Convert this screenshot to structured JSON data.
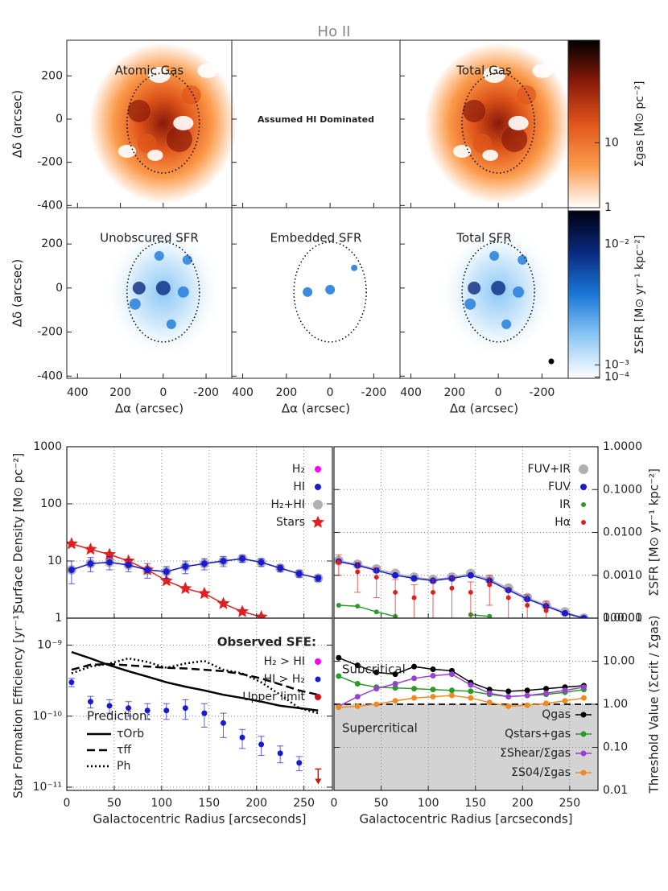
{
  "maps": {
    "title": "Ho II",
    "xlabel": "Δα (arcsec)",
    "ylabel": "Δδ (arcsec)",
    "xlim": [
      450,
      -320
    ],
    "ylim": [
      -410,
      365
    ],
    "xticks": [
      400,
      200,
      0,
      -200
    ],
    "yticks": [
      200,
      0,
      -200,
      -400
    ],
    "panels": [
      [
        "Atomic Gas",
        "Assumed HI Dominated",
        "Total Gas"
      ],
      [
        "Unobscured SFR",
        "Embedded SFR",
        "Total SFR"
      ]
    ],
    "colorbars": [
      {
        "label": "Σgas [M⊙ pc⁻²]",
        "log": true,
        "lim": [
          1,
          380
        ],
        "ticks": [
          10,
          1
        ],
        "colors": [
          "#ffffff",
          "#fb9a4a",
          "#e0551a",
          "#8a1a0a",
          "#000000"
        ]
      },
      {
        "label": "ΣSFR [M⊙ yr⁻¹ kpc⁻²]",
        "log": false,
        "lim": [
          0,
          0.0125
        ],
        "ticks": [
          {
            "value": 0.01,
            "label": "10⁻²"
          },
          {
            "value": 0.001,
            "label": "10⁻³"
          },
          {
            "value": 0.0001,
            "label": "10⁻⁴"
          }
        ],
        "colors": [
          "#ffffff",
          "#8ec8f5",
          "#1a78d8",
          "#0a2a80",
          "#000010"
        ]
      }
    ]
  },
  "chart_data": [
    {
      "type": "line",
      "x": [
        5,
        25,
        45,
        65,
        85,
        105,
        125,
        145,
        165,
        185,
        205,
        225,
        245,
        265
      ],
      "xlim": [
        0,
        280
      ],
      "xticks": [
        0,
        50,
        100,
        150,
        200,
        250
      ],
      "show_xtick_labels": false,
      "ylim": [
        1,
        1000
      ],
      "yticks": [
        1,
        10,
        100,
        1000
      ],
      "log_y": true,
      "y_axis_side": "left",
      "grid": true,
      "ylabel": "Surface Density [M⊙ pc⁻²]",
      "legend": "upper right",
      "series": [
        {
          "name": "H₂",
          "color": "#ff00ff",
          "marker": "circle",
          "marker_size": 4,
          "line": true,
          "values": [
            null,
            null,
            null,
            null,
            null,
            null,
            null,
            null,
            null,
            null,
            null,
            null,
            null,
            null
          ]
        },
        {
          "name": "HI",
          "color": "#1a1ad0",
          "marker": "circle",
          "marker_size": 4,
          "line": true,
          "values": [
            7,
            9,
            9.5,
            8.5,
            7,
            6.5,
            8,
            9,
            10,
            11,
            9.5,
            7.5,
            6,
            5
          ],
          "errors": [
            3,
            2.5,
            2.5,
            2,
            2,
            1.5,
            2,
            2,
            2,
            1.5,
            1.5,
            1,
            0.8,
            0.6
          ]
        },
        {
          "name": "H₂+HI",
          "color": "#b0b0b0",
          "marker": "circle",
          "marker_size": 6,
          "line": true,
          "values": [
            7,
            9,
            9.5,
            8.5,
            7,
            6.5,
            8,
            9,
            10,
            11,
            9.5,
            7.5,
            6,
            5
          ]
        },
        {
          "name": "Stars",
          "color": "#e02020",
          "marker": "star",
          "marker_size": 6,
          "line": true,
          "values": [
            20,
            16,
            13,
            10,
            7,
            4.5,
            3.3,
            2.7,
            1.8,
            1.3,
            1.05,
            null,
            null,
            null
          ]
        }
      ]
    },
    {
      "type": "line",
      "x": [
        5,
        25,
        45,
        65,
        85,
        105,
        125,
        145,
        165,
        185,
        205,
        225,
        245,
        265
      ],
      "xlim": [
        0,
        280
      ],
      "xticks": [
        0,
        50,
        100,
        150,
        200,
        250
      ],
      "show_xtick_labels": false,
      "ylim": [
        0.0001,
        1
      ],
      "yticks": [
        0.0001,
        {
          "value": 0.001,
          "label": "0.0010"
        },
        {
          "value": 0.01,
          "label": "0.0100"
        },
        {
          "value": 0.1,
          "label": "0.1000"
        },
        {
          "value": 1,
          "label": "1.0000"
        }
      ],
      "log_y": true,
      "y_axis_side": "right",
      "grid": true,
      "ylabel": "ΣSFR [M⊙ yr⁻¹ kpc⁻²]",
      "legend": "upper right",
      "series": [
        {
          "name": "FUV+IR",
          "color": "#b0b0b0",
          "marker": "circle",
          "marker_size": 6,
          "line": true,
          "values": [
            0.0022,
            0.0018,
            0.0014,
            0.0011,
            0.0009,
            0.0008,
            0.0009,
            0.0011,
            0.0008,
            0.0005,
            0.0003,
            0.0002,
            0.00014,
            0.0001
          ]
        },
        {
          "name": "FUV",
          "color": "#1a1ad0",
          "marker": "circle",
          "marker_size": 4,
          "line": true,
          "values": [
            0.0021,
            0.0017,
            0.0013,
            0.001,
            0.00085,
            0.00075,
            0.00085,
            0.001,
            0.00075,
            0.00045,
            0.00028,
            0.00019,
            0.00013,
            0.0001
          ]
        },
        {
          "name": "IR",
          "color": "#2a9a2a",
          "marker": "circle",
          "marker_size": 3,
          "line": true,
          "values": [
            0.0002,
            0.00019,
            0.00014,
            0.00011,
            null,
            null,
            null,
            0.00012,
            0.00011,
            null,
            null,
            null,
            null,
            null
          ]
        },
        {
          "name": "Hα",
          "color": "#e02020",
          "marker": "circle",
          "marker_size": 3,
          "line": false,
          "values": [
            0.002,
            0.0012,
            0.0009,
            0.0004,
            0.0003,
            0.0004,
            0.0005,
            0.0004,
            0.0006,
            0.0003,
            0.0002,
            0.00015,
            null,
            null
          ],
          "errors": [
            0.001,
            0.0008,
            0.0006,
            0.0004,
            0.0003,
            0.0004,
            0.0004,
            0.0003,
            0.0004,
            0.0002,
            0.00015,
            0.0001,
            null,
            null
          ]
        }
      ]
    },
    {
      "type": "line",
      "x": [
        5,
        25,
        45,
        65,
        85,
        105,
        125,
        145,
        165,
        185,
        205,
        225,
        245,
        265
      ],
      "xlim": [
        0,
        280
      ],
      "xticks": [
        0,
        50,
        100,
        150,
        200,
        250
      ],
      "xlabel": "Galactocentric Radius [arcseconds]",
      "ylim": [
        9e-12,
        2.4e-09
      ],
      "yticks": [
        {
          "value": 1e-11,
          "label": "10⁻¹¹"
        },
        {
          "value": 1e-10,
          "label": "10⁻¹⁰"
        },
        {
          "value": 1e-09,
          "label": "10⁻⁹"
        }
      ],
      "log_y": true,
      "y_axis_side": "left",
      "grid": true,
      "ylabel": "Star Formation Efficiency [yr⁻¹]",
      "legend": "upper right",
      "legend_title": "Observed SFE:",
      "series": [
        {
          "name": "H₂ > HI",
          "color": "#ff00ff",
          "marker": "circle",
          "marker_size": 4,
          "line": false,
          "values": [
            null,
            null,
            null,
            null,
            null,
            null,
            null,
            null,
            null,
            null,
            null,
            null,
            null,
            null
          ]
        },
        {
          "name": "HI > H₂",
          "color": "#1a1ad0",
          "marker": "circle",
          "marker_size": 3.5,
          "line": false,
          "values": [
            3e-10,
            1.6e-10,
            1.4e-10,
            1.3e-10,
            1.2e-10,
            1.2e-10,
            1.3e-10,
            1.1e-10,
            8e-11,
            5e-11,
            4e-11,
            3e-11,
            2.2e-11,
            null
          ],
          "errors": [
            4e-11,
            3e-11,
            3e-11,
            3e-11,
            3e-11,
            3e-11,
            4e-11,
            4e-11,
            3e-11,
            1.5e-11,
            1.2e-11,
            8e-12,
            5e-12,
            null
          ]
        },
        {
          "name": "Upper limit",
          "color": "#d01010",
          "marker": "arrow",
          "marker_size": 4,
          "line": false,
          "values": [
            null,
            null,
            null,
            null,
            null,
            null,
            null,
            null,
            null,
            null,
            null,
            null,
            null,
            1.8e-11
          ]
        }
      ],
      "predictions": {
        "title": "Prediction:",
        "color": "#000000",
        "series": [
          {
            "name": "τOrb",
            "dash": "solid",
            "values": [
              8e-10,
              6.5e-10,
              5.2e-10,
              4.3e-10,
              3.6e-10,
              3e-10,
              2.6e-10,
              2.3e-10,
              2e-10,
              1.8e-10,
              1.6e-10,
              1.4e-10,
              1.3e-10,
              1.2e-10
            ]
          },
          {
            "name": "τff",
            "dash": "dashed",
            "values": [
              4.5e-10,
              5.3e-10,
              5.4e-10,
              5.2e-10,
              5e-10,
              4.8e-10,
              4.7e-10,
              4.5e-10,
              4.3e-10,
              3.9e-10,
              3.4e-10,
              2.8e-10,
              2.3e-10,
              2e-10
            ]
          },
          {
            "name": "Ph",
            "dash": "dotted",
            "values": [
              4e-10,
              5e-10,
              5.5e-10,
              6.5e-10,
              5.8e-10,
              4.8e-10,
              5.5e-10,
              6e-10,
              4.5e-10,
              4e-10,
              3e-10,
              2e-10,
              1.3e-10,
              1.1e-10
            ]
          }
        ]
      }
    },
    {
      "type": "line",
      "x": [
        5,
        25,
        45,
        65,
        85,
        105,
        125,
        145,
        165,
        185,
        205,
        225,
        245,
        265
      ],
      "xlim": [
        0,
        280
      ],
      "xticks": [
        0,
        50,
        100,
        150,
        200,
        250
      ],
      "xlabel": "Galactocentric Radius [arcseconds]",
      "ylim": [
        0.01,
        100
      ],
      "yticks": [
        0.01,
        {
          "value": 0.1,
          "label": "0.10"
        },
        {
          "value": 1,
          "label": "1.00"
        },
        {
          "value": 10,
          "label": "10.00"
        },
        {
          "value": 100,
          "label": "100.00"
        }
      ],
      "log_y": true,
      "y_axis_side": "right",
      "grid": true,
      "ylabel": "Threshold Value (Σcrit / Σgas)",
      "threshold": 1,
      "region_color": "#d3d3d3",
      "annotations": [
        "Subcritical",
        "Supercritical"
      ],
      "legend": "lower right",
      "series": [
        {
          "name": "Qgas",
          "color": "#000000",
          "marker": "circle",
          "marker_size": 3.5,
          "line": true,
          "values": [
            12,
            8,
            5.5,
            5,
            7.5,
            6.5,
            6,
            3.2,
            2.2,
            2,
            2.1,
            2.3,
            2.5,
            2.7
          ]
        },
        {
          "name": "Qstars+gas",
          "color": "#2a9a2a",
          "marker": "circle",
          "marker_size": 3.5,
          "line": true,
          "values": [
            4.5,
            3,
            2.5,
            2.4,
            2.3,
            2.2,
            2.1,
            2,
            1.7,
            1.5,
            1.6,
            1.7,
            1.9,
            2.2
          ]
        },
        {
          "name": "ΣShear/Σgas",
          "color": "#9a40d0",
          "marker": "circle",
          "marker_size": 3.5,
          "line": true,
          "values": [
            0.9,
            1.5,
            2.3,
            3,
            4,
            4.6,
            5,
            2.8,
            1.8,
            1.5,
            1.6,
            1.8,
            2.1,
            2.5
          ]
        },
        {
          "name": "ΣS04/Σgas",
          "color": "#f08a20",
          "marker": "circle",
          "marker_size": 3.5,
          "line": true,
          "values": [
            0.85,
            0.9,
            1,
            1.2,
            1.4,
            1.5,
            1.6,
            1.4,
            1.1,
            0.9,
            0.95,
            1.05,
            1.2,
            1.4
          ]
        }
      ]
    }
  ]
}
